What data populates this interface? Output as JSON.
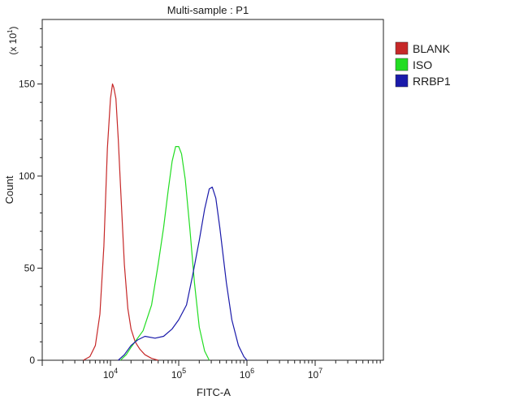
{
  "chart_data": {
    "type": "line",
    "title": "Multi-sample : P1",
    "xlabel": "FITC-A",
    "ylabel": "Count",
    "y_multiplier_label": "(x 10",
    "y_multiplier_exp": "1",
    "y_multiplier_close": ")",
    "x_scale": "log",
    "xlim": [
      1000,
      100000000
    ],
    "ylim": [
      0,
      185
    ],
    "x_ticks": [
      {
        "value": 10000,
        "base": "10",
        "exp": "4"
      },
      {
        "value": 100000,
        "base": "10",
        "exp": "5"
      },
      {
        "value": 1000000,
        "base": "10",
        "exp": "6"
      },
      {
        "value": 10000000,
        "base": "10",
        "exp": "7"
      }
    ],
    "y_ticks": [
      {
        "value": 0,
        "label": "0"
      },
      {
        "value": 50,
        "label": "50"
      },
      {
        "value": 100,
        "label": "100"
      },
      {
        "value": 150,
        "label": "150"
      }
    ],
    "legend_position": "top-right",
    "grid": false,
    "series": [
      {
        "name": "BLANK",
        "color": "#c62828",
        "points": [
          [
            4000,
            0
          ],
          [
            5000,
            2
          ],
          [
            6000,
            8
          ],
          [
            7000,
            25
          ],
          [
            8000,
            62
          ],
          [
            9000,
            115
          ],
          [
            10000,
            142
          ],
          [
            10700,
            150
          ],
          [
            11200,
            148
          ],
          [
            12000,
            142
          ],
          [
            13000,
            120
          ],
          [
            14000,
            95
          ],
          [
            16000,
            52
          ],
          [
            18000,
            28
          ],
          [
            20000,
            17
          ],
          [
            23000,
            10
          ],
          [
            27000,
            6
          ],
          [
            32000,
            3
          ],
          [
            40000,
            1
          ],
          [
            50000,
            0
          ]
        ]
      },
      {
        "name": "ISO",
        "color": "#22dd22",
        "points": [
          [
            14000,
            0
          ],
          [
            17000,
            3
          ],
          [
            20000,
            7
          ],
          [
            25000,
            12
          ],
          [
            30000,
            16
          ],
          [
            40000,
            30
          ],
          [
            50000,
            52
          ],
          [
            60000,
            72
          ],
          [
            70000,
            92
          ],
          [
            80000,
            108
          ],
          [
            90000,
            116
          ],
          [
            100000,
            116
          ],
          [
            110000,
            112
          ],
          [
            125000,
            98
          ],
          [
            145000,
            72
          ],
          [
            170000,
            42
          ],
          [
            200000,
            18
          ],
          [
            240000,
            5
          ],
          [
            280000,
            0
          ]
        ]
      },
      {
        "name": "RRBP1",
        "color": "#1a1aaa",
        "points": [
          [
            13000,
            0
          ],
          [
            16000,
            3
          ],
          [
            20000,
            8
          ],
          [
            25000,
            11
          ],
          [
            32000,
            13
          ],
          [
            45000,
            12
          ],
          [
            60000,
            13
          ],
          [
            80000,
            17
          ],
          [
            100000,
            22
          ],
          [
            130000,
            30
          ],
          [
            160000,
            46
          ],
          [
            200000,
            65
          ],
          [
            240000,
            82
          ],
          [
            280000,
            93
          ],
          [
            310000,
            94
          ],
          [
            350000,
            88
          ],
          [
            400000,
            72
          ],
          [
            500000,
            42
          ],
          [
            600000,
            22
          ],
          [
            750000,
            8
          ],
          [
            900000,
            2
          ],
          [
            1000000,
            0
          ]
        ]
      }
    ]
  }
}
